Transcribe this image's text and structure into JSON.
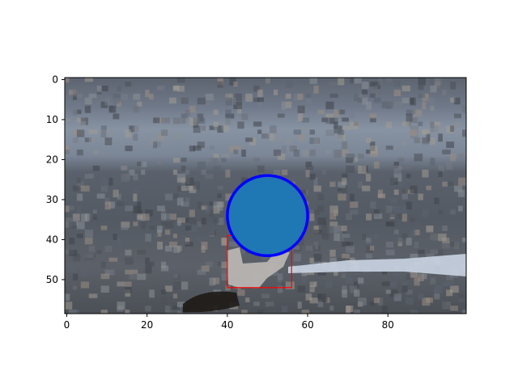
{
  "chart_data": {
    "type": "scatter",
    "title": "",
    "xlabel": "",
    "ylabel": "",
    "xlim": [
      -0.5,
      99.5
    ],
    "ylim": [
      58.5,
      -0.5
    ],
    "x_ticks": [
      0,
      20,
      40,
      60,
      80
    ],
    "y_ticks": [
      0,
      10,
      20,
      30,
      40,
      50
    ],
    "grid": false,
    "legend": "none",
    "background": "pixelated aerial photo of grey gravel road texture",
    "series": [
      {
        "type": "marker",
        "shape": "circle",
        "x": 50,
        "y": 34,
        "radius": 10,
        "fill": "#1f77b4",
        "edge": "#0000ff"
      }
    ],
    "annotations": [
      {
        "type": "rectangle",
        "x0": 40,
        "y0": 39,
        "x1": 56,
        "y1": 52,
        "edge": "#ff0000"
      }
    ]
  }
}
